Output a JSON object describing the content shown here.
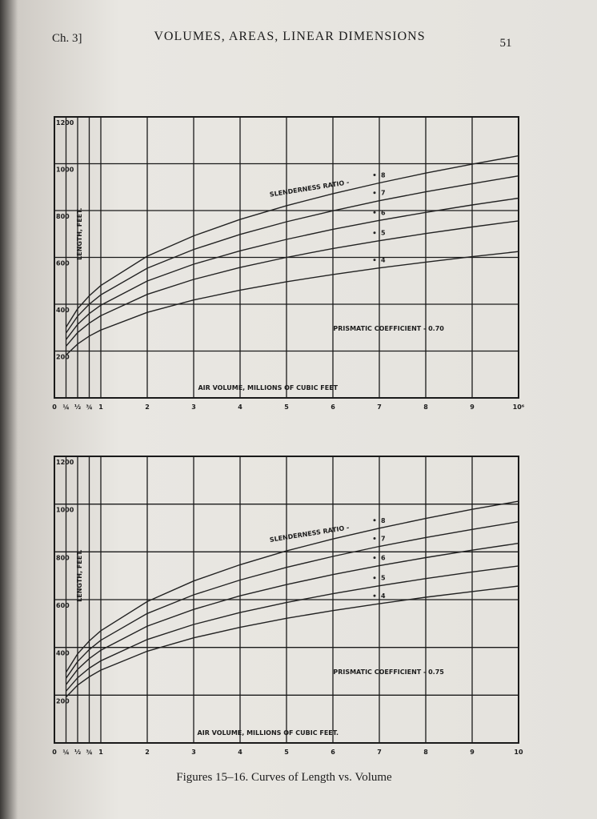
{
  "header": {
    "chapter": "Ch. 3]",
    "title": "VOLUMES, AREAS, LINEAR DIMENSIONS",
    "page": "51"
  },
  "caption": "Figures 15–16. Curves of Length vs. Volume",
  "chart_data": [
    {
      "type": "line",
      "ylabel": "LENGTH, FEET.",
      "xlabel": "AIR VOLUME, MILLIONS OF CUBIC FEET",
      "series_note": "SLENDERNESS RATIO -",
      "coefficient_note": "PRISMATIC COEFFICIENT - 0.70",
      "x": [
        0.25,
        0.5,
        0.75,
        1,
        2,
        3,
        4,
        5,
        6,
        7,
        8,
        9,
        10
      ],
      "series": [
        {
          "name": "8",
          "color": "#222222",
          "values": [
            302,
            381,
            436,
            480,
            605,
            692,
            762,
            821,
            872,
            918,
            960,
            998,
            1034
          ]
        },
        {
          "name": "7",
          "color": "#222222",
          "values": [
            277,
            349,
            400,
            440,
            554,
            634,
            698,
            752,
            799,
            842,
            880,
            915,
            948
          ]
        },
        {
          "name": "6",
          "color": "#222222",
          "values": [
            249,
            314,
            360,
            396,
            499,
            571,
            628,
            677,
            720,
            758,
            792,
            824,
            853
          ]
        },
        {
          "name": "5",
          "color": "#222222",
          "values": [
            221,
            279,
            319,
            351,
            442,
            506,
            557,
            600,
            638,
            671,
            702,
            730,
            756
          ]
        },
        {
          "name": "4",
          "color": "#222222",
          "values": [
            183,
            230,
            264,
            290,
            365,
            418,
            460,
            496,
            527,
            555,
            580,
            603,
            625
          ]
        }
      ],
      "xlim": [
        0,
        10
      ],
      "ylim": [
        0,
        1200
      ],
      "xticks": [
        0,
        {
          "value": 0.25,
          "label": "¼"
        },
        {
          "value": 0.5,
          "label": "½"
        },
        {
          "value": 0.75,
          "label": "¾"
        },
        1,
        2,
        3,
        4,
        5,
        6,
        7,
        8,
        9,
        {
          "value": 10,
          "label": "10⁶"
        }
      ],
      "yticks": [
        200,
        400,
        600,
        800,
        1000,
        1200
      ],
      "grid": true
    },
    {
      "type": "line",
      "ylabel": "LENGTH, FEET.",
      "xlabel": "AIR VOLUME, MILLIONS OF CUBIC FEET.",
      "series_note": "SLENDERNESS RATIO -",
      "coefficient_note": "PRISMATIC COEFFICIENT - 0.75",
      "x": [
        0.25,
        0.5,
        0.75,
        1,
        2,
        3,
        4,
        5,
        6,
        7,
        8,
        9,
        10
      ],
      "series": [
        {
          "name": "8",
          "color": "#222222",
          "values": [
            296,
            373,
            427,
            470,
            592,
            678,
            746,
            804,
            854,
            899,
            940,
            978,
            1012
          ]
        },
        {
          "name": "7",
          "color": "#222222",
          "values": [
            271,
            341,
            391,
            430,
            542,
            620,
            682,
            735,
            781,
            823,
            860,
            894,
            926
          ]
        },
        {
          "name": "6",
          "color": "#222222",
          "values": [
            244,
            308,
            353,
            388,
            489,
            559,
            616,
            663,
            705,
            742,
            776,
            807,
            836
          ]
        },
        {
          "name": "5",
          "color": "#222222",
          "values": [
            217,
            273,
            313,
            344,
            433,
            496,
            546,
            588,
            625,
            658,
            688,
            716,
            741
          ]
        },
        {
          "name": "4",
          "color": "#222222",
          "values": [
            192,
            242,
            277,
            305,
            384,
            440,
            484,
            522,
            554,
            583,
            610,
            634,
            657
          ]
        }
      ],
      "xlim": [
        0,
        10
      ],
      "ylim": [
        0,
        1200
      ],
      "xticks": [
        0,
        {
          "value": 0.25,
          "label": "¼"
        },
        {
          "value": 0.5,
          "label": "½"
        },
        {
          "value": 0.75,
          "label": "¾"
        },
        1,
        2,
        3,
        4,
        5,
        6,
        7,
        8,
        9,
        10
      ],
      "yticks": [
        200,
        400,
        600,
        800,
        1000,
        1200
      ],
      "grid": true
    }
  ]
}
